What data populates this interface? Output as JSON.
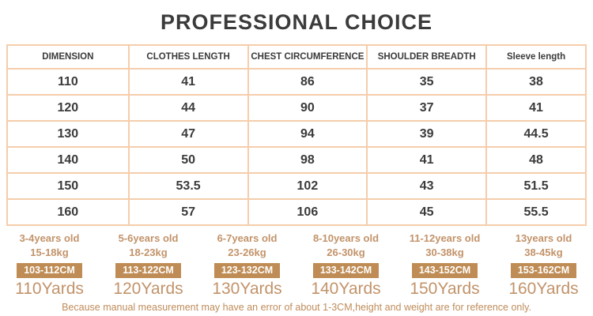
{
  "title": "PROFESSIONAL CHOICE",
  "colors": {
    "accent_tan_text": "#c2936a",
    "badge_background": "#bf8c55",
    "table_border": "#f5cdab",
    "dark_text": "#3a3a3a"
  },
  "table": {
    "headers": [
      "DIMENSION",
      "CLOTHES LENGTH",
      "CHEST CIRCUMFERENCE",
      "SHOULDER BREADTH",
      "Sleeve length"
    ],
    "rows": [
      [
        "110",
        "41",
        "86",
        "35",
        "38"
      ],
      [
        "120",
        "44",
        "90",
        "37",
        "41"
      ],
      [
        "130",
        "47",
        "94",
        "39",
        "44.5"
      ],
      [
        "140",
        "50",
        "98",
        "41",
        "48"
      ],
      [
        "150",
        "53.5",
        "102",
        "43",
        "51.5"
      ],
      [
        "160",
        "57",
        "106",
        "45",
        "55.5"
      ]
    ]
  },
  "size_groups": [
    {
      "age": "3-4years old",
      "weight": "15-18kg",
      "height": "103-112CM",
      "yards": "110Yards"
    },
    {
      "age": "5-6years old",
      "weight": "18-23kg",
      "height": "113-122CM",
      "yards": "120Yards"
    },
    {
      "age": "6-7years old",
      "weight": "23-26kg",
      "height": "123-132CM",
      "yards": "130Yards"
    },
    {
      "age": "8-10years old",
      "weight": "26-30kg",
      "height": "133-142CM",
      "yards": "140Yards"
    },
    {
      "age": "11-12years old",
      "weight": "30-38kg",
      "height": "143-152CM",
      "yards": "150Yards"
    },
    {
      "age": "13years old",
      "weight": "38-45kg",
      "height": "153-162CM",
      "yards": "160Yards"
    }
  ],
  "note": "Because manual measurement may have an error of about 1-3CM,height and weight are for reference only."
}
